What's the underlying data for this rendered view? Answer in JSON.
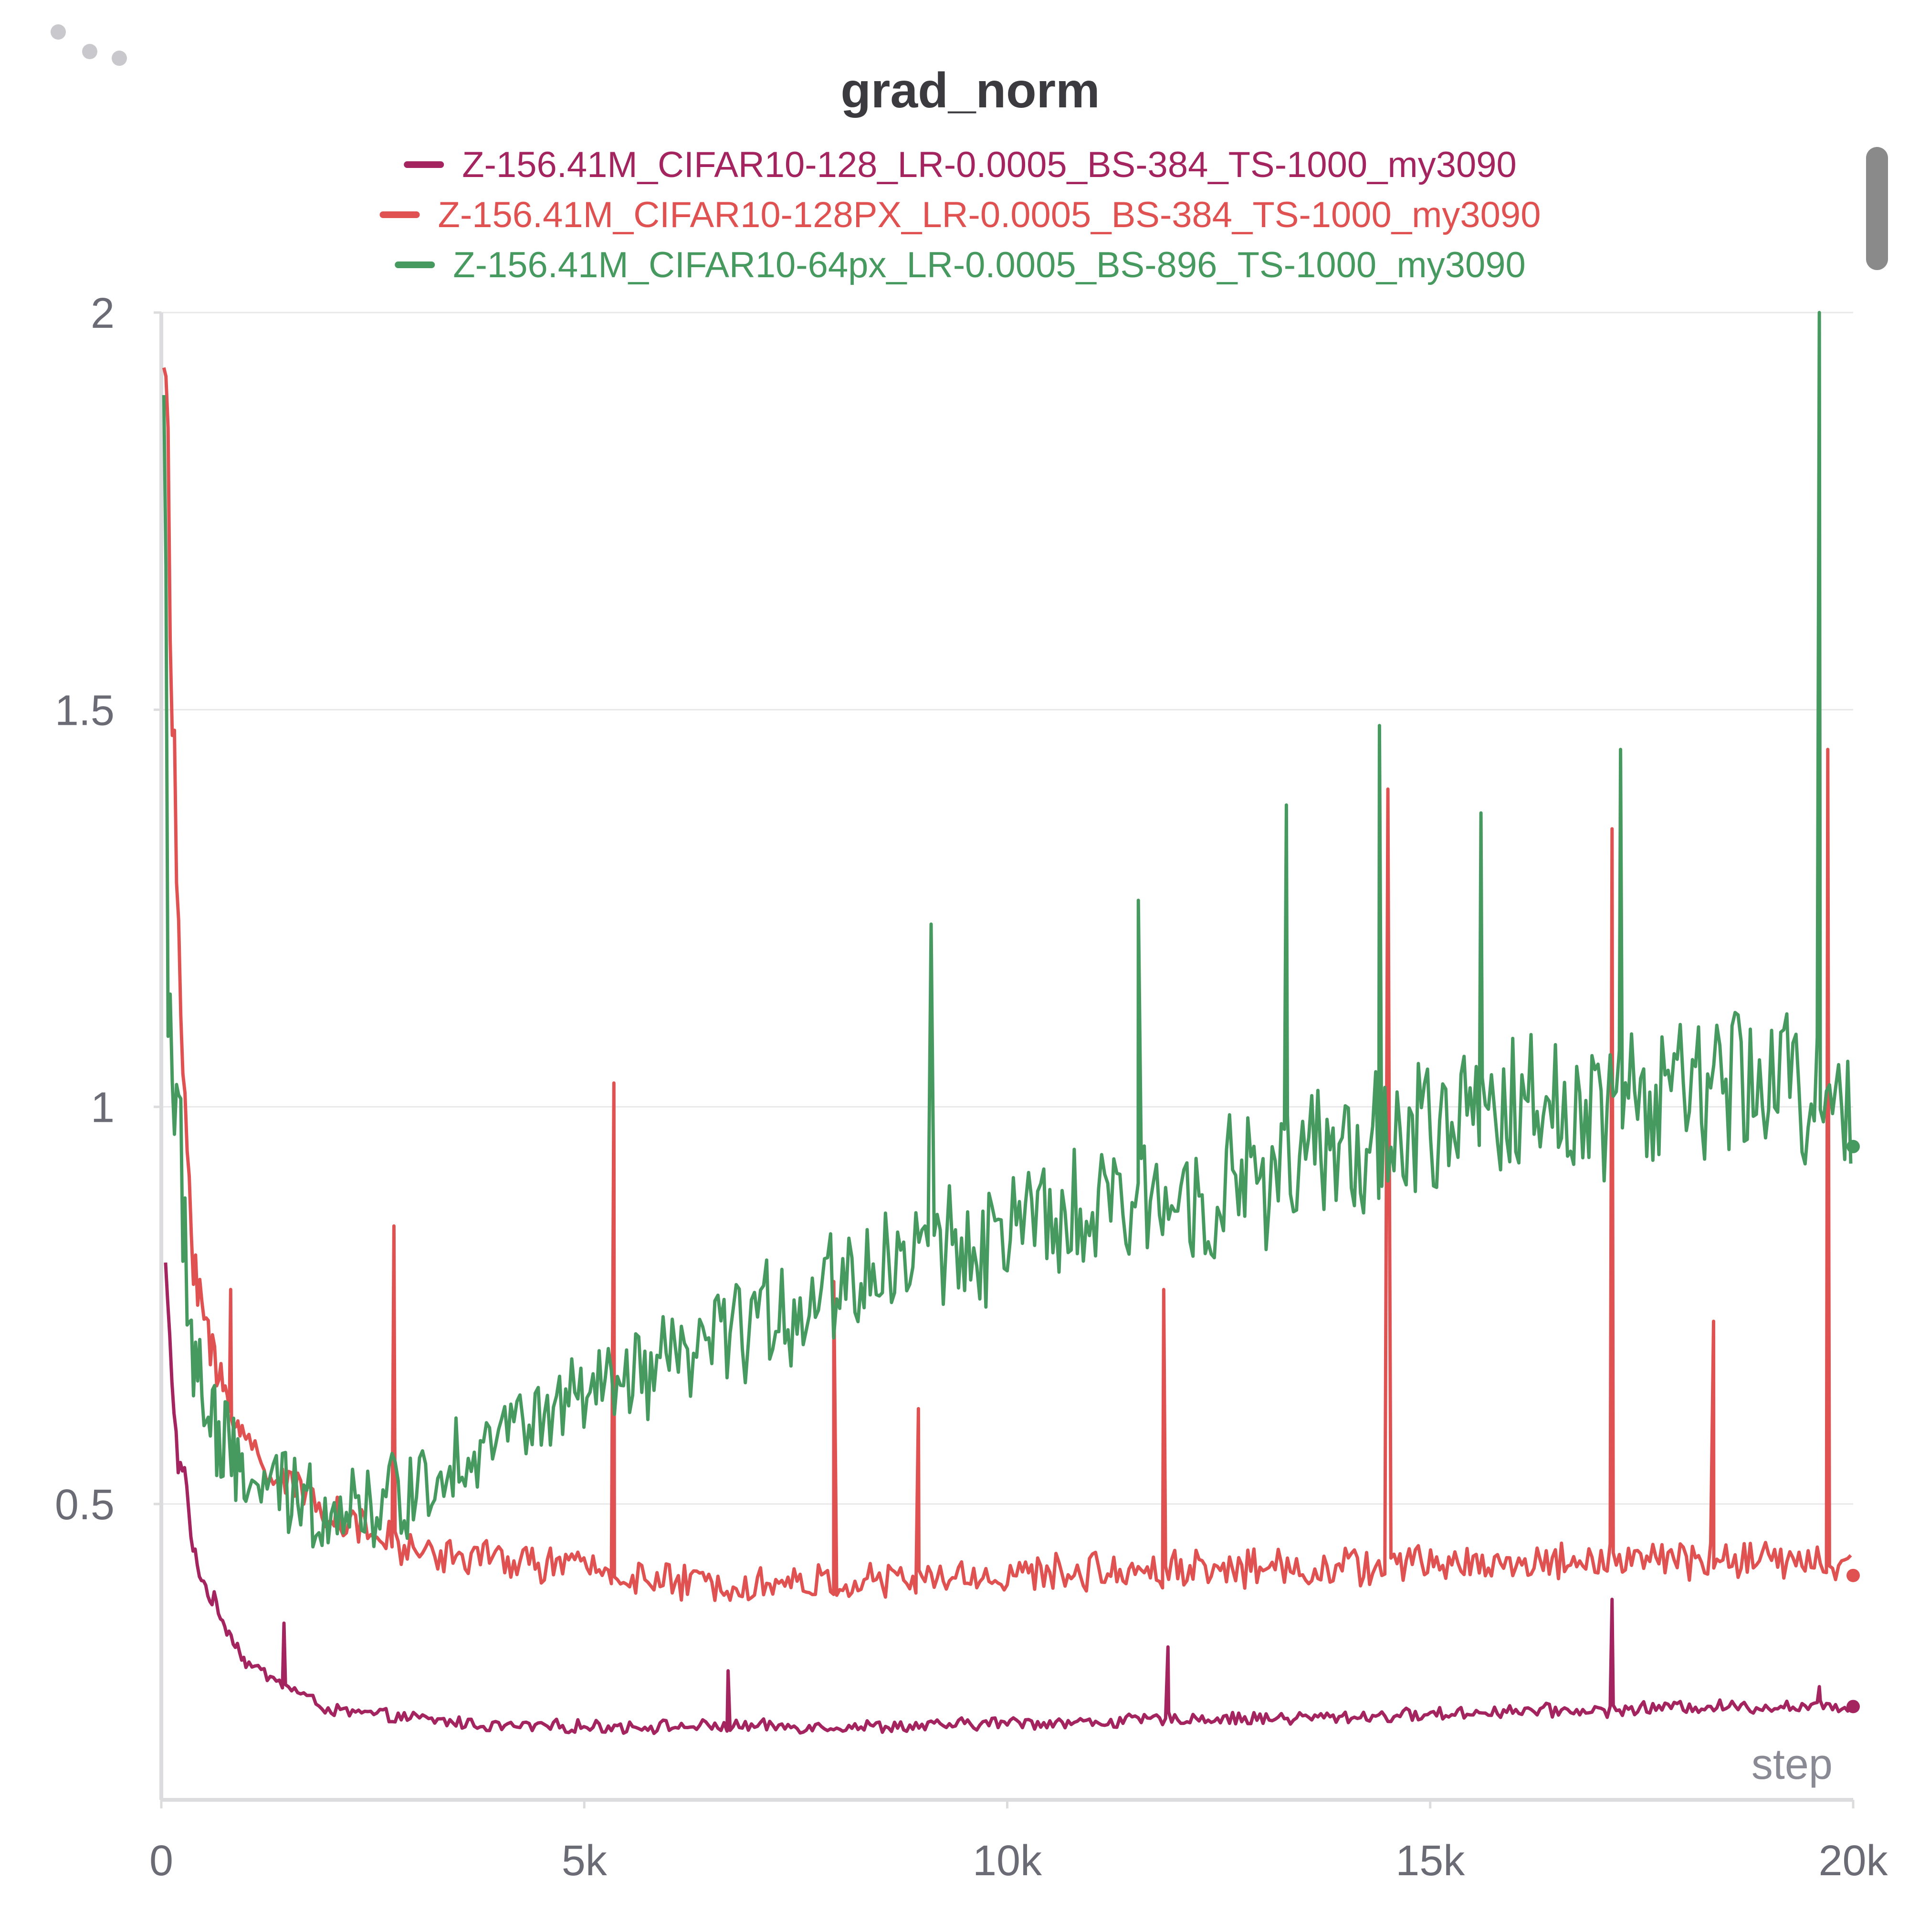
{
  "panel": {
    "menu_icon": "drag-dots-icon",
    "scrollbar_color": "#8a8a8a"
  },
  "chart_data": {
    "type": "line",
    "title": "grad_norm",
    "xlabel": "step",
    "ylabel": "",
    "xlim": [
      0,
      20000
    ],
    "ylim": [
      0.2,
      2
    ],
    "x_ticks": [
      0,
      5000,
      10000,
      15000,
      20000
    ],
    "x_tick_labels": [
      "0",
      "5k",
      "10k",
      "15k",
      "20k"
    ],
    "y_ticks": [
      0.5,
      1,
      1.5,
      2
    ],
    "y_tick_labels": [
      "0.5",
      "1",
      "1.5",
      "2"
    ],
    "grid": true,
    "legend_position": "top",
    "series": [
      {
        "name": "Z-156.41M_CIFAR10-128_LR-0.0005_BS-384_TS-1000_my3090",
        "color": "#a3245f",
        "points": [
          [
            50,
            0.8
          ],
          [
            80,
            0.74
          ],
          [
            150,
            0.62
          ],
          [
            200,
            0.55
          ],
          [
            300,
            0.53
          ],
          [
            350,
            0.45
          ],
          [
            500,
            0.4
          ],
          [
            700,
            0.36
          ],
          [
            1000,
            0.3
          ],
          [
            1500,
            0.27
          ],
          [
            2000,
            0.24
          ],
          [
            3000,
            0.23
          ],
          [
            4000,
            0.22
          ],
          [
            5000,
            0.22
          ],
          [
            6000,
            0.22
          ],
          [
            7000,
            0.22
          ],
          [
            8000,
            0.22
          ],
          [
            9000,
            0.22
          ],
          [
            10000,
            0.225
          ],
          [
            11000,
            0.225
          ],
          [
            12000,
            0.23
          ],
          [
            13000,
            0.23
          ],
          [
            14000,
            0.232
          ],
          [
            15000,
            0.235
          ],
          [
            16000,
            0.24
          ],
          [
            17000,
            0.24
          ],
          [
            18000,
            0.245
          ],
          [
            19000,
            0.245
          ],
          [
            19500,
            0.245
          ],
          [
            20000,
            0.245
          ]
        ],
        "spikes": [
          [
            1450,
            0.35
          ],
          [
            6700,
            0.29
          ],
          [
            11900,
            0.32
          ],
          [
            17150,
            0.38
          ],
          [
            19600,
            0.27
          ]
        ],
        "noise": 0.012,
        "end_value": 0.245
      },
      {
        "name": "Z-156.41M_CIFAR10-128PX_LR-0.0005_BS-384_TS-1000_my3090",
        "color": "#e05252",
        "points": [
          [
            30,
            2.0
          ],
          [
            100,
            1.65
          ],
          [
            150,
            1.4
          ],
          [
            250,
            1.05
          ],
          [
            400,
            0.8
          ],
          [
            600,
            0.68
          ],
          [
            900,
            0.6
          ],
          [
            1200,
            0.55
          ],
          [
            1600,
            0.52
          ],
          [
            2000,
            0.49
          ],
          [
            2500,
            0.46
          ],
          [
            3000,
            0.44
          ],
          [
            4000,
            0.43
          ],
          [
            5000,
            0.42
          ],
          [
            6000,
            0.4
          ],
          [
            7000,
            0.4
          ],
          [
            8000,
            0.4
          ],
          [
            9000,
            0.405
          ],
          [
            10000,
            0.41
          ],
          [
            11000,
            0.415
          ],
          [
            12000,
            0.42
          ],
          [
            13000,
            0.42
          ],
          [
            14000,
            0.42
          ],
          [
            15000,
            0.425
          ],
          [
            16000,
            0.425
          ],
          [
            17000,
            0.43
          ],
          [
            18000,
            0.43
          ],
          [
            19000,
            0.43
          ],
          [
            20000,
            0.42
          ]
        ],
        "spikes": [
          [
            820,
            0.77
          ],
          [
            2750,
            0.85
          ],
          [
            5350,
            1.03
          ],
          [
            7950,
            0.78
          ],
          [
            8950,
            0.62
          ],
          [
            11850,
            0.77
          ],
          [
            14500,
            1.4
          ],
          [
            17150,
            1.35
          ],
          [
            18350,
            0.73
          ],
          [
            19700,
            1.45
          ]
        ],
        "noise": 0.035,
        "end_value": 0.41
      },
      {
        "name": "Z-156.41M_CIFAR10-64px_LR-0.0005_BS-896_TS-1000_my3090",
        "color": "#479a5f",
        "points": [
          [
            30,
            1.92
          ],
          [
            80,
            1.25
          ],
          [
            150,
            1.0
          ],
          [
            250,
            0.85
          ],
          [
            400,
            0.68
          ],
          [
            600,
            0.6
          ],
          [
            800,
            0.55
          ],
          [
            1200,
            0.52
          ],
          [
            1800,
            0.5
          ],
          [
            2500,
            0.5
          ],
          [
            3000,
            0.52
          ],
          [
            3500,
            0.56
          ],
          [
            4000,
            0.59
          ],
          [
            4500,
            0.61
          ],
          [
            5000,
            0.63
          ],
          [
            5500,
            0.65
          ],
          [
            6000,
            0.67
          ],
          [
            6500,
            0.7
          ],
          [
            7000,
            0.73
          ],
          [
            7500,
            0.75
          ],
          [
            8000,
            0.78
          ],
          [
            8500,
            0.8
          ],
          [
            9000,
            0.82
          ],
          [
            10000,
            0.84
          ],
          [
            11000,
            0.86
          ],
          [
            12000,
            0.89
          ],
          [
            13000,
            0.91
          ],
          [
            14000,
            0.94
          ],
          [
            15000,
            0.97
          ],
          [
            16000,
            1.0
          ],
          [
            17000,
            1.01
          ],
          [
            18000,
            1.02
          ],
          [
            19000,
            1.03
          ],
          [
            20000,
            1.02
          ]
        ],
        "spikes": [
          [
            9100,
            1.23
          ],
          [
            11550,
            1.26
          ],
          [
            13300,
            1.38
          ],
          [
            14400,
            1.48
          ],
          [
            15600,
            1.37
          ],
          [
            17250,
            1.45
          ],
          [
            19600,
            2.0
          ]
        ],
        "noise": 0.085,
        "end_value": 0.95
      }
    ]
  }
}
